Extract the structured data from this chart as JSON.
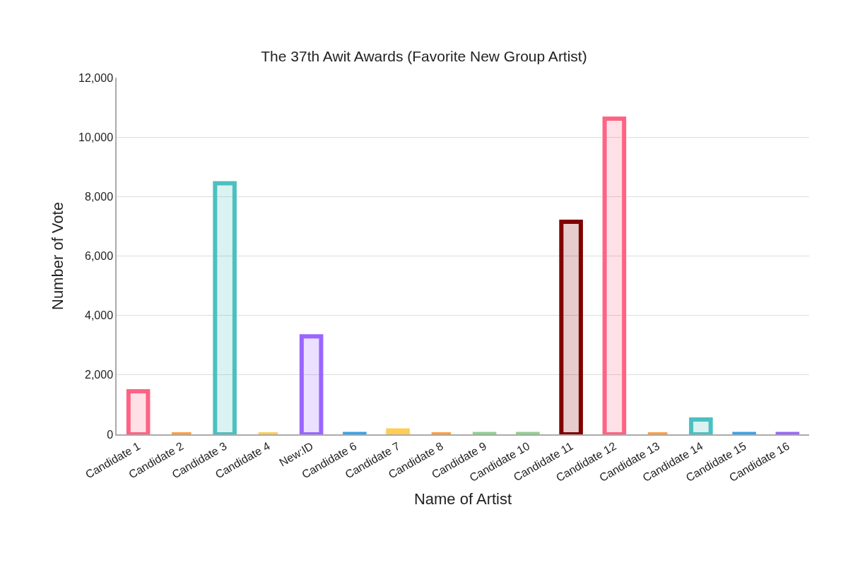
{
  "chart_data": {
    "type": "bar",
    "title": "The 37th Awit Awards (Favorite New Group Artist)",
    "xlabel": "Name of Artist",
    "ylabel": "Number of Vote",
    "categories": [
      "Candidate 1",
      "Candidate 2",
      "Candidate 3",
      "Candidate 4",
      "New:ID",
      "Candidate 6",
      "Candidate 7",
      "Candidate 8",
      "Candidate 9",
      "Candidate 10",
      "Candidate 11",
      "Candidate 12",
      "Candidate 13",
      "Candidate 14",
      "Candidate 15",
      "Candidate 16"
    ],
    "values": [
      1450,
      0,
      8450,
      0,
      3300,
      10,
      130,
      0,
      10,
      10,
      7150,
      10620,
      0,
      500,
      10,
      10
    ],
    "colors": [
      "#ff6384",
      "#ff9f40",
      "#4bc0c0",
      "#ffcd56",
      "#9966ff",
      "#36a2eb",
      "#ffcd56",
      "#ff9f40",
      "#8fd18f",
      "#8fd18f",
      "#800000",
      "#ff6384",
      "#ff9f40",
      "#4bc0c0",
      "#36a2eb",
      "#9966ff"
    ],
    "ylim": [
      0,
      12000
    ],
    "yticks": [
      {
        "value": 0,
        "label": "0"
      },
      {
        "value": 2000,
        "label": "2,000"
      },
      {
        "value": 4000,
        "label": "4,000"
      },
      {
        "value": 6000,
        "label": "6,000"
      },
      {
        "value": 8000,
        "label": "8,000"
      },
      {
        "value": 10000,
        "label": "10,000"
      },
      {
        "value": 12000,
        "label": "12,000"
      }
    ],
    "grid": "y",
    "legend": false
  }
}
